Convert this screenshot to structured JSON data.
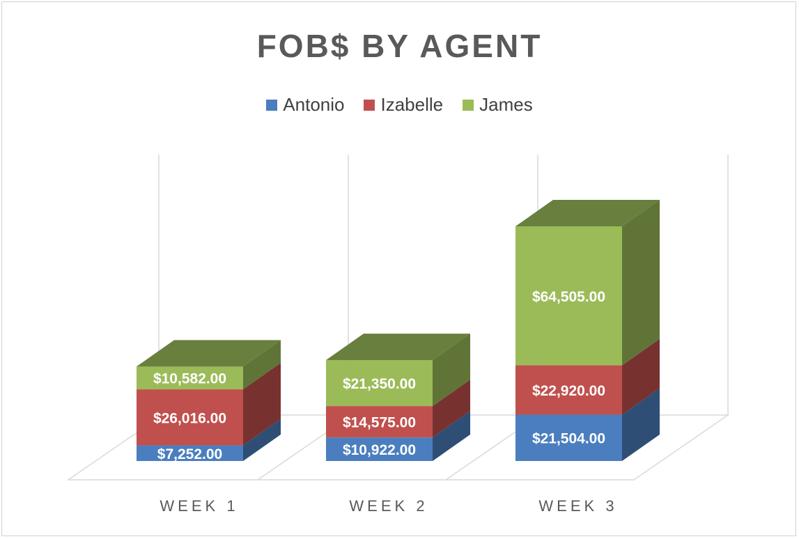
{
  "chart_data": {
    "type": "bar",
    "stacked": true,
    "three_d": true,
    "title": "FOB$ BY AGENT",
    "categories": [
      "WEEK 1",
      "WEEK 2",
      "WEEK 3"
    ],
    "series": [
      {
        "name": "Antonio",
        "values": [
          7252,
          10922,
          21504
        ],
        "labels": [
          "$7,252.00",
          "$10,922.00",
          "$21,504.00"
        ],
        "color": "#4a7ebf"
      },
      {
        "name": "Izabelle",
        "values": [
          26016,
          14575,
          22920
        ],
        "labels": [
          "$26,016.00",
          "$14,575.00",
          "$22,920.00"
        ],
        "color": "#c0504d"
      },
      {
        "name": "James",
        "values": [
          10582,
          21350,
          64505
        ],
        "labels": [
          "$10,582.00",
          "$21,350.00",
          "$64,505.00"
        ],
        "color": "#9bbb59"
      }
    ],
    "legend_position": "top-center",
    "grid": true
  }
}
